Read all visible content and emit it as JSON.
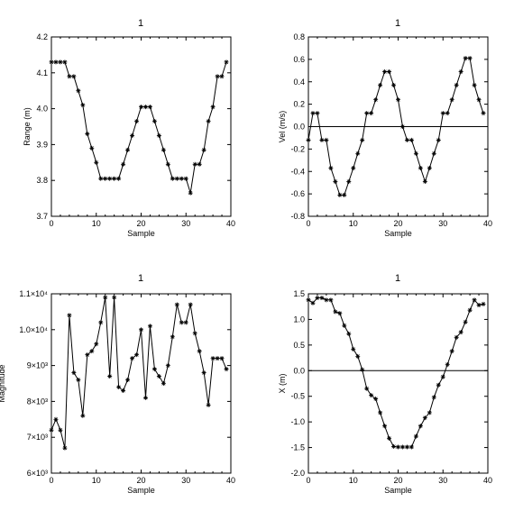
{
  "chart_data": [
    {
      "type": "line",
      "title": "1",
      "xlabel": "Sample",
      "ylabel": "Range (m)",
      "xlim": [
        0,
        40
      ],
      "ylim": [
        3.7,
        4.2
      ],
      "xticks": [
        0,
        10,
        20,
        30,
        40
      ],
      "xtick_labels": [
        "0",
        "10",
        "20",
        "30",
        "40"
      ],
      "yticks": [
        3.7,
        3.8,
        3.9,
        4.0,
        4.1,
        4.2
      ],
      "ytick_labels": [
        "3.7",
        "3.8",
        "3.9",
        "4.0",
        "4.1",
        "4.2"
      ],
      "zero_line": false,
      "marker": "asterisk",
      "x": [
        0,
        1,
        2,
        3,
        4,
        5,
        6,
        7,
        8,
        9,
        10,
        11,
        12,
        13,
        14,
        15,
        16,
        17,
        18,
        19,
        20,
        21,
        22,
        23,
        24,
        25,
        26,
        27,
        28,
        29,
        30,
        31,
        32,
        33,
        34,
        35,
        36,
        37,
        38,
        39
      ],
      "y": [
        4.13,
        4.13,
        4.13,
        4.13,
        4.09,
        4.09,
        4.05,
        4.01,
        3.93,
        3.89,
        3.85,
        3.805,
        3.805,
        3.805,
        3.805,
        3.805,
        3.845,
        3.885,
        3.925,
        3.965,
        4.005,
        4.005,
        4.005,
        3.965,
        3.925,
        3.885,
        3.845,
        3.805,
        3.805,
        3.805,
        3.805,
        3.765,
        3.845,
        3.845,
        3.885,
        3.965,
        4.005,
        4.09,
        4.09,
        4.13
      ]
    },
    {
      "type": "line",
      "title": "1",
      "xlabel": "Sample",
      "ylabel": "Vel (m/s)",
      "xlim": [
        0,
        40
      ],
      "ylim": [
        -0.8,
        0.8
      ],
      "xticks": [
        0,
        10,
        20,
        30,
        40
      ],
      "xtick_labels": [
        "0",
        "10",
        "20",
        "30",
        "40"
      ],
      "yticks": [
        -0.8,
        -0.6,
        -0.4,
        -0.2,
        0.0,
        0.2,
        0.4,
        0.6,
        0.8
      ],
      "ytick_labels": [
        "-0.8",
        "-0.6",
        "-0.4",
        "-0.2",
        "0.0",
        "0.2",
        "0.4",
        "0.6",
        "0.8"
      ],
      "zero_line": true,
      "marker": "asterisk",
      "x": [
        0,
        1,
        2,
        3,
        4,
        5,
        6,
        7,
        8,
        9,
        10,
        11,
        12,
        13,
        14,
        15,
        16,
        17,
        18,
        19,
        20,
        21,
        22,
        23,
        24,
        25,
        26,
        27,
        28,
        29,
        30,
        31,
        32,
        33,
        34,
        35,
        36,
        37,
        38,
        39
      ],
      "y": [
        -0.12,
        0.12,
        0.12,
        -0.12,
        -0.12,
        -0.37,
        -0.49,
        -0.61,
        -0.61,
        -0.49,
        -0.37,
        -0.24,
        -0.12,
        0.12,
        0.12,
        0.24,
        0.37,
        0.49,
        0.49,
        0.37,
        0.24,
        0.0,
        -0.12,
        -0.12,
        -0.24,
        -0.37,
        -0.49,
        -0.37,
        -0.24,
        -0.12,
        0.12,
        0.12,
        0.24,
        0.37,
        0.49,
        0.61,
        0.61,
        0.37,
        0.24,
        0.12
      ]
    },
    {
      "type": "line",
      "title": "1",
      "xlabel": "Sample",
      "ylabel": "Magnitude",
      "xlim": [
        0,
        40
      ],
      "ylim": [
        6000,
        11000
      ],
      "xticks": [
        0,
        10,
        20,
        30,
        40
      ],
      "xtick_labels": [
        "0",
        "10",
        "20",
        "30",
        "40"
      ],
      "yticks": [
        6000,
        7000,
        8000,
        9000,
        10000,
        11000
      ],
      "ytick_labels": [
        "6×10³",
        "7×10³",
        "8×10³",
        "9×10³",
        "1.0×10⁴",
        "1.1×10⁴"
      ],
      "zero_line": false,
      "marker": "asterisk",
      "x": [
        0,
        1,
        2,
        3,
        4,
        5,
        6,
        7,
        8,
        9,
        10,
        11,
        12,
        13,
        14,
        15,
        16,
        17,
        18,
        19,
        20,
        21,
        22,
        23,
        24,
        25,
        26,
        27,
        28,
        29,
        30,
        31,
        32,
        33,
        34,
        35,
        36,
        37,
        38,
        39
      ],
      "y": [
        7200,
        7500,
        7200,
        6700,
        10400,
        8800,
        8600,
        7600,
        9300,
        9400,
        9600,
        10200,
        10900,
        8700,
        10900,
        8400,
        8300,
        8600,
        9200,
        9300,
        10000,
        8100,
        10100,
        8900,
        8700,
        8500,
        9000,
        9800,
        10700,
        10200,
        10200,
        10700,
        9900,
        9400,
        8800,
        7900,
        9200,
        9200,
        9200,
        8900
      ]
    },
    {
      "type": "line",
      "title": "1",
      "xlabel": "Sample",
      "ylabel": "X (m)",
      "xlim": [
        0,
        40
      ],
      "ylim": [
        -2.0,
        1.5
      ],
      "xticks": [
        0,
        10,
        20,
        30,
        40
      ],
      "xtick_labels": [
        "0",
        "10",
        "20",
        "30",
        "40"
      ],
      "yticks": [
        -2.0,
        -1.5,
        -1.0,
        -0.5,
        0.0,
        0.5,
        1.0,
        1.5
      ],
      "ytick_labels": [
        "-2.0",
        "-1.5",
        "-1.0",
        "-0.5",
        "0.0",
        "0.5",
        "1.0",
        "1.5"
      ],
      "zero_line": true,
      "marker": "asterisk",
      "x": [
        0,
        1,
        2,
        3,
        4,
        5,
        6,
        7,
        8,
        9,
        10,
        11,
        12,
        13,
        14,
        15,
        16,
        17,
        18,
        19,
        20,
        21,
        22,
        23,
        24,
        25,
        26,
        27,
        28,
        29,
        30,
        31,
        32,
        33,
        34,
        35,
        36,
        37,
        38,
        39
      ],
      "y": [
        1.38,
        1.32,
        1.42,
        1.42,
        1.38,
        1.38,
        1.15,
        1.12,
        0.88,
        0.72,
        0.42,
        0.28,
        0.02,
        -0.35,
        -0.48,
        -0.55,
        -0.82,
        -1.08,
        -1.32,
        -1.48,
        -1.49,
        -1.49,
        -1.49,
        -1.49,
        -1.28,
        -1.08,
        -0.92,
        -0.82,
        -0.52,
        -0.28,
        -0.12,
        0.12,
        0.38,
        0.65,
        0.75,
        0.95,
        1.18,
        1.38,
        1.28,
        1.3
      ]
    }
  ]
}
